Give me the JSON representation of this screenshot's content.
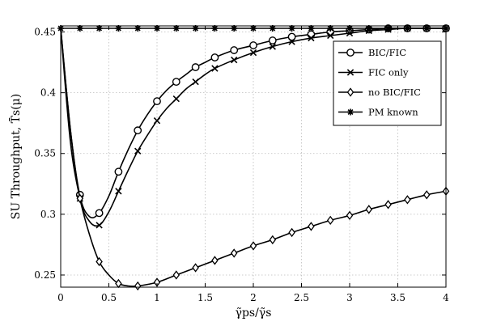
{
  "chart_data": {
    "type": "line",
    "xlabel": "γ̃ps/γ̃s",
    "ylabel": "SU Throughput, T̄s(μ)",
    "xlim": [
      0,
      4
    ],
    "ylim": [
      0.24,
      0.455
    ],
    "xticks": [
      "0",
      "0.5",
      "1",
      "1.5",
      "2",
      "2.5",
      "3",
      "3.5",
      "4"
    ],
    "yticks": [
      "0.25",
      "0.3",
      "0.35",
      "0.4",
      "0.45"
    ],
    "grid": true,
    "legend_position": "top-right",
    "series": [
      {
        "name": "BIC/FIC",
        "marker": "circle",
        "curve": [
          [
            0,
            0.453
          ],
          [
            0.1,
            0.37
          ],
          [
            0.2,
            0.315
          ],
          [
            0.3,
            0.298
          ],
          [
            0.4,
            0.301
          ],
          [
            0.5,
            0.315
          ],
          [
            0.6,
            0.335
          ],
          [
            0.7,
            0.353
          ],
          [
            0.8,
            0.369
          ],
          [
            0.9,
            0.382
          ],
          [
            1.0,
            0.393
          ],
          [
            1.1,
            0.402
          ],
          [
            1.2,
            0.409
          ],
          [
            1.3,
            0.415
          ],
          [
            1.4,
            0.421
          ],
          [
            1.5,
            0.425
          ],
          [
            1.6,
            0.429
          ],
          [
            1.8,
            0.435
          ],
          [
            2.0,
            0.439
          ],
          [
            2.2,
            0.443
          ],
          [
            2.4,
            0.446
          ],
          [
            2.6,
            0.448
          ],
          [
            2.8,
            0.45
          ],
          [
            3.0,
            0.451
          ],
          [
            3.2,
            0.452
          ],
          [
            3.4,
            0.453
          ],
          [
            3.6,
            0.453
          ],
          [
            4.0,
            0.453
          ]
        ],
        "markers": [
          [
            0.2,
            0.316
          ],
          [
            0.4,
            0.301
          ],
          [
            0.6,
            0.335
          ],
          [
            0.8,
            0.369
          ],
          [
            1.0,
            0.393
          ],
          [
            1.2,
            0.409
          ],
          [
            1.4,
            0.421
          ],
          [
            1.6,
            0.429
          ],
          [
            1.8,
            0.435
          ],
          [
            2.0,
            0.439
          ],
          [
            2.2,
            0.443
          ],
          [
            2.4,
            0.446
          ],
          [
            2.6,
            0.448
          ],
          [
            2.8,
            0.45
          ],
          [
            3.0,
            0.451
          ],
          [
            3.2,
            0.452
          ],
          [
            3.4,
            0.453
          ],
          [
            3.6,
            0.453
          ],
          [
            3.8,
            0.453
          ],
          [
            4.0,
            0.453
          ]
        ]
      },
      {
        "name": "FIC only",
        "marker": "x",
        "curve": [
          [
            0,
            0.453
          ],
          [
            0.1,
            0.37
          ],
          [
            0.2,
            0.313
          ],
          [
            0.3,
            0.294
          ],
          [
            0.4,
            0.291
          ],
          [
            0.5,
            0.302
          ],
          [
            0.6,
            0.319
          ],
          [
            0.7,
            0.336
          ],
          [
            0.8,
            0.352
          ],
          [
            0.9,
            0.365
          ],
          [
            1.0,
            0.377
          ],
          [
            1.1,
            0.387
          ],
          [
            1.2,
            0.395
          ],
          [
            1.3,
            0.403
          ],
          [
            1.4,
            0.409
          ],
          [
            1.5,
            0.415
          ],
          [
            1.6,
            0.42
          ],
          [
            1.8,
            0.427
          ],
          [
            2.0,
            0.433
          ],
          [
            2.2,
            0.438
          ],
          [
            2.4,
            0.442
          ],
          [
            2.6,
            0.445
          ],
          [
            2.8,
            0.447
          ],
          [
            3.0,
            0.449
          ],
          [
            3.2,
            0.451
          ],
          [
            3.4,
            0.452
          ],
          [
            3.6,
            0.453
          ],
          [
            4.0,
            0.453
          ]
        ],
        "markers": [
          [
            0.2,
            0.313
          ],
          [
            0.4,
            0.291
          ],
          [
            0.6,
            0.319
          ],
          [
            0.8,
            0.352
          ],
          [
            1.0,
            0.377
          ],
          [
            1.2,
            0.395
          ],
          [
            1.4,
            0.409
          ],
          [
            1.6,
            0.42
          ],
          [
            1.8,
            0.427
          ],
          [
            2.0,
            0.433
          ],
          [
            2.2,
            0.438
          ],
          [
            2.4,
            0.442
          ],
          [
            2.6,
            0.445
          ],
          [
            2.8,
            0.447
          ],
          [
            3.0,
            0.449
          ],
          [
            3.2,
            0.451
          ],
          [
            3.4,
            0.452
          ],
          [
            3.6,
            0.453
          ],
          [
            3.8,
            0.453
          ],
          [
            4.0,
            0.453
          ]
        ]
      },
      {
        "name": "no BIC/FIC",
        "marker": "diamond",
        "curve": [
          [
            0,
            0.453
          ],
          [
            0.1,
            0.36
          ],
          [
            0.2,
            0.313
          ],
          [
            0.3,
            0.283
          ],
          [
            0.4,
            0.261
          ],
          [
            0.5,
            0.25
          ],
          [
            0.6,
            0.243
          ],
          [
            0.7,
            0.241
          ],
          [
            0.8,
            0.241
          ],
          [
            1.0,
            0.244
          ],
          [
            1.2,
            0.25
          ],
          [
            1.4,
            0.256
          ],
          [
            1.6,
            0.262
          ],
          [
            1.8,
            0.268
          ],
          [
            2.0,
            0.274
          ],
          [
            2.2,
            0.279
          ],
          [
            2.4,
            0.285
          ],
          [
            2.6,
            0.29
          ],
          [
            2.8,
            0.295
          ],
          [
            3.0,
            0.299
          ],
          [
            3.2,
            0.304
          ],
          [
            3.4,
            0.308
          ],
          [
            3.6,
            0.312
          ],
          [
            3.8,
            0.316
          ],
          [
            4.0,
            0.319
          ]
        ],
        "markers": [
          [
            0.2,
            0.313
          ],
          [
            0.4,
            0.261
          ],
          [
            0.6,
            0.243
          ],
          [
            0.8,
            0.241
          ],
          [
            1.0,
            0.244
          ],
          [
            1.2,
            0.25
          ],
          [
            1.4,
            0.256
          ],
          [
            1.6,
            0.262
          ],
          [
            1.8,
            0.268
          ],
          [
            2.0,
            0.274
          ],
          [
            2.2,
            0.279
          ],
          [
            2.4,
            0.285
          ],
          [
            2.6,
            0.29
          ],
          [
            2.8,
            0.295
          ],
          [
            3.0,
            0.299
          ],
          [
            3.2,
            0.304
          ],
          [
            3.4,
            0.308
          ],
          [
            3.6,
            0.312
          ],
          [
            3.8,
            0.316
          ],
          [
            4.0,
            0.319
          ]
        ]
      },
      {
        "name": "PM known",
        "marker": "star",
        "curve": [
          [
            0,
            0.453
          ],
          [
            4.0,
            0.453
          ]
        ],
        "markers": [
          [
            0,
            0.453
          ],
          [
            0.2,
            0.453
          ],
          [
            0.4,
            0.453
          ],
          [
            0.6,
            0.453
          ],
          [
            0.8,
            0.453
          ],
          [
            1.0,
            0.453
          ],
          [
            1.2,
            0.453
          ],
          [
            1.4,
            0.453
          ],
          [
            1.6,
            0.453
          ],
          [
            1.8,
            0.453
          ],
          [
            2.0,
            0.453
          ],
          [
            2.2,
            0.453
          ],
          [
            2.4,
            0.453
          ],
          [
            2.6,
            0.453
          ],
          [
            2.8,
            0.453
          ],
          [
            3.0,
            0.453
          ],
          [
            3.2,
            0.453
          ],
          [
            3.4,
            0.453
          ],
          [
            3.6,
            0.453
          ],
          [
            3.8,
            0.453
          ],
          [
            4.0,
            0.453
          ]
        ]
      }
    ]
  }
}
